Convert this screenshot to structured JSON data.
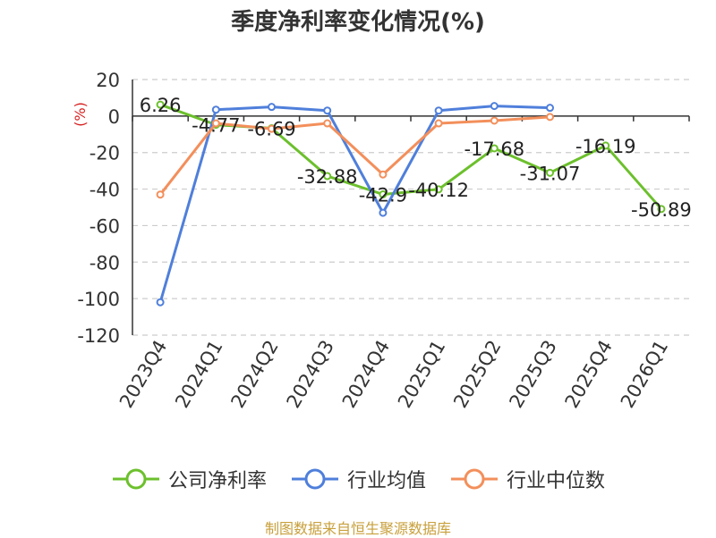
{
  "chart_data": {
    "type": "line",
    "title": "季度净利率变化情况(%)",
    "ylabel": "(%)",
    "xlabel": "",
    "ylim": [
      -120,
      20
    ],
    "yticks": [
      20,
      0,
      -20,
      -40,
      -60,
      -80,
      -100,
      -120
    ],
    "categories": [
      "2023Q4",
      "2024Q1",
      "2024Q2",
      "2024Q3",
      "2024Q4",
      "2025Q1",
      "2025Q2",
      "2025Q3",
      "2025Q4",
      "2026Q1"
    ],
    "grid": true,
    "legend_position": "bottom",
    "series": [
      {
        "name": "公司净利率",
        "color": "#6cc02c",
        "values": [
          6.26,
          -4.77,
          -6.69,
          -32.88,
          -42.9,
          -40.12,
          -17.68,
          -31.07,
          -16.19,
          -50.89
        ],
        "labels": [
          "6.26",
          "-4.77",
          "-6.69",
          "-32.88",
          "-42.9",
          "-40.12",
          "-17.68",
          "-31.07",
          "-16.19",
          "-50.89"
        ]
      },
      {
        "name": "行业均值",
        "color": "#4f7fdb",
        "values": [
          -102,
          3.5,
          5,
          3,
          -53,
          3,
          5.5,
          4.5,
          null,
          null
        ]
      },
      {
        "name": "行业中位数",
        "color": "#f38f5b",
        "values": [
          -43,
          -4,
          -7,
          -4,
          -32,
          -4,
          -2.5,
          -0.5,
          null,
          null
        ]
      }
    ]
  },
  "source": "制图数据来自恒生聚源数据库"
}
